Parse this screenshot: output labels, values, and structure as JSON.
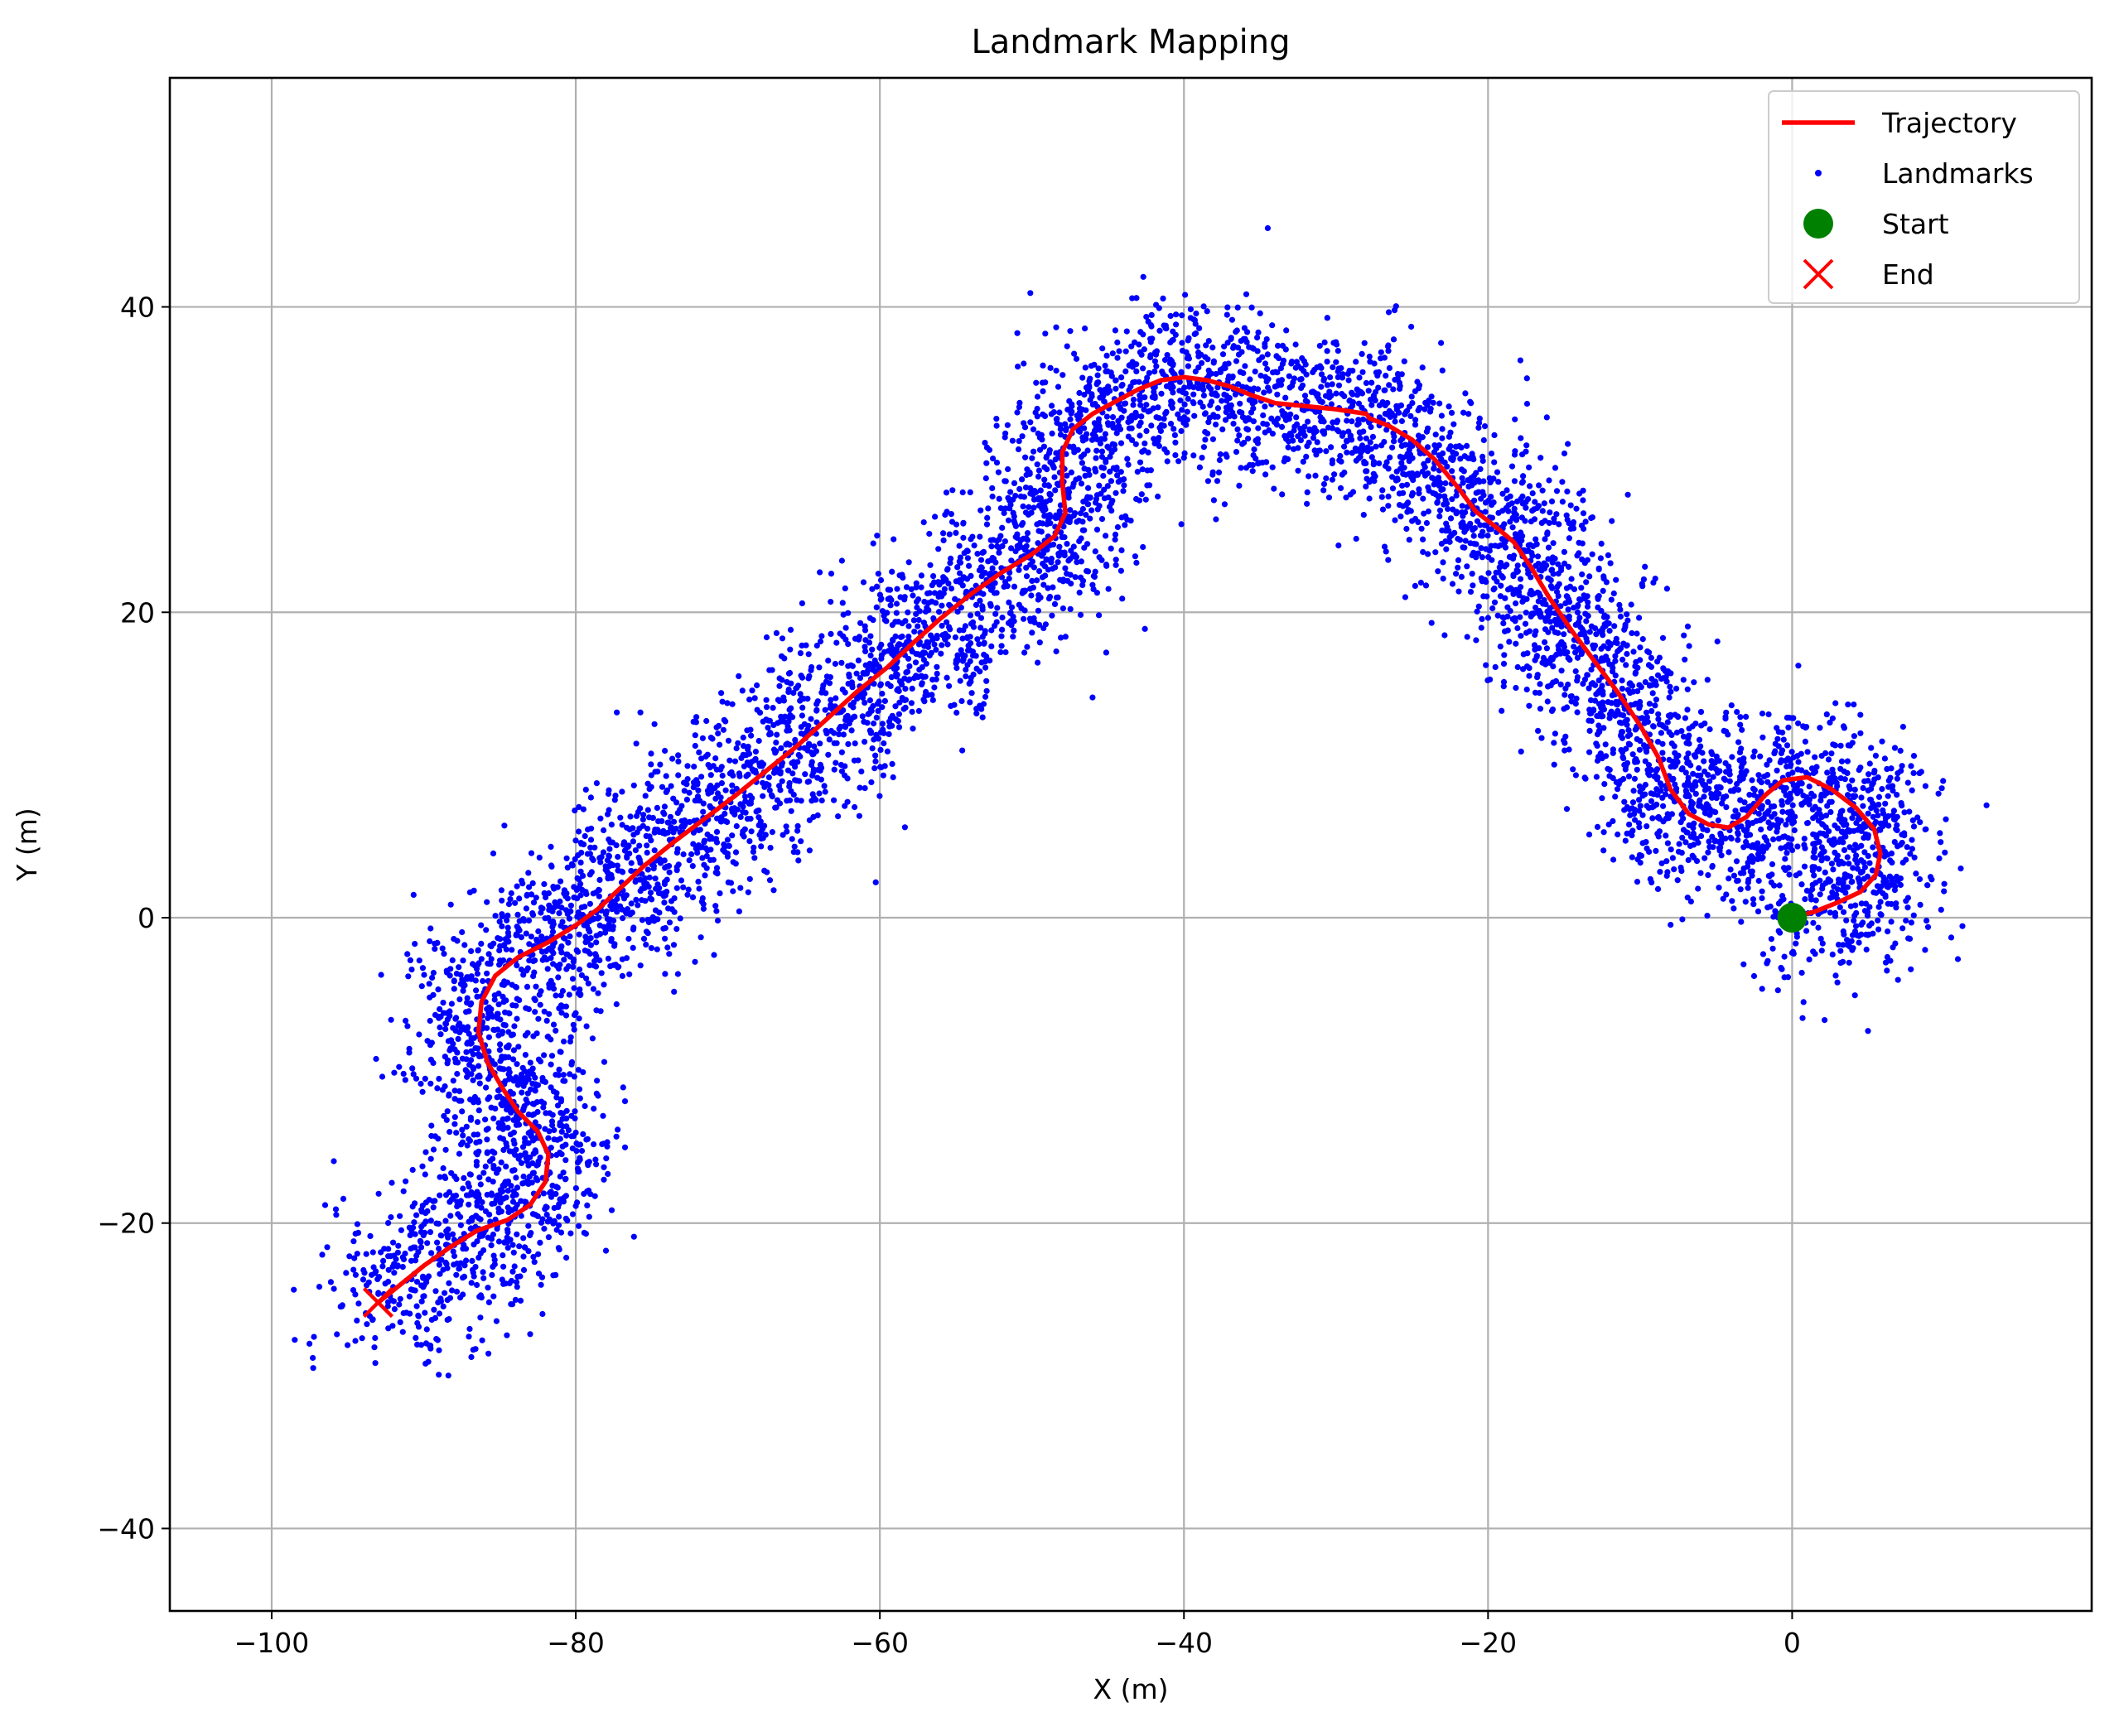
{
  "chart_data": {
    "type": "scatter",
    "title": "Landmark Mapping",
    "xlabel": "X (m)",
    "ylabel": "Y (m)",
    "xlim": [
      -106.7,
      19.7
    ],
    "ylim": [
      -45.4,
      55.0
    ],
    "xticks": [
      -100,
      -80,
      -60,
      -40,
      -20,
      0
    ],
    "yticks": [
      -40,
      -20,
      0,
      20,
      40
    ],
    "xtick_labels": [
      "−100",
      "−80",
      "−60",
      "−40",
      "−20",
      "0"
    ],
    "ytick_labels": [
      "−40",
      "−20",
      "0",
      "20",
      "40"
    ],
    "grid": true,
    "legend_position": "top-right",
    "legend": [
      {
        "label": "Trajectory",
        "marker": "line"
      },
      {
        "label": "Landmarks",
        "marker": "dot"
      },
      {
        "label": "Start",
        "marker": "circle"
      },
      {
        "label": "End",
        "marker": "x"
      }
    ],
    "colors": {
      "trajectory": "#ff0000",
      "landmarks": "#0000ff",
      "start": "#008000",
      "end": "#ff0000",
      "grid": "#b0b0b0"
    },
    "series": [
      {
        "name": "Trajectory",
        "kind": "line",
        "points": [
          [
            0.0,
            0.0
          ],
          [
            1.5,
            0.4
          ],
          [
            3.0,
            1.0
          ],
          [
            4.5,
            1.7
          ],
          [
            5.5,
            2.8
          ],
          [
            5.8,
            4.2
          ],
          [
            5.4,
            5.8
          ],
          [
            4.2,
            7.2
          ],
          [
            2.6,
            8.4
          ],
          [
            1.0,
            9.2
          ],
          [
            -0.6,
            9.0
          ],
          [
            -1.8,
            8.0
          ],
          [
            -3.0,
            6.6
          ],
          [
            -4.2,
            5.9
          ],
          [
            -5.5,
            6.1
          ],
          [
            -6.8,
            6.8
          ],
          [
            -8.0,
            8.4
          ],
          [
            -8.8,
            10.5
          ],
          [
            -10.0,
            12.6
          ],
          [
            -11.5,
            14.8
          ],
          [
            -13.0,
            16.8
          ],
          [
            -14.5,
            18.8
          ],
          [
            -16.0,
            21.0
          ],
          [
            -17.2,
            23.0
          ],
          [
            -18.3,
            24.6
          ],
          [
            -19.5,
            25.6
          ],
          [
            -20.8,
            26.6
          ],
          [
            -22.0,
            28.2
          ],
          [
            -23.5,
            30.0
          ],
          [
            -25.0,
            31.3
          ],
          [
            -26.5,
            32.2
          ],
          [
            -27.8,
            32.7
          ],
          [
            -28.0,
            33.0
          ],
          [
            -30.0,
            33.3
          ],
          [
            -32.0,
            33.5
          ],
          [
            -34.0,
            33.7
          ],
          [
            -35.5,
            34.2
          ],
          [
            -37.0,
            34.8
          ],
          [
            -38.5,
            35.2
          ],
          [
            -40.0,
            35.4
          ],
          [
            -41.5,
            35.2
          ],
          [
            -43.0,
            34.6
          ],
          [
            -44.5,
            33.8
          ],
          [
            -46.0,
            33.0
          ],
          [
            -47.3,
            32.0
          ],
          [
            -48.0,
            30.5
          ],
          [
            -48.0,
            28.5
          ],
          [
            -47.8,
            26.5
          ],
          [
            -48.5,
            25.0
          ],
          [
            -50.0,
            23.8
          ],
          [
            -52.0,
            22.6
          ],
          [
            -54.0,
            21.2
          ],
          [
            -56.0,
            19.6
          ],
          [
            -57.8,
            18.0
          ],
          [
            -59.5,
            16.4
          ],
          [
            -61.5,
            14.8
          ],
          [
            -63.5,
            13.0
          ],
          [
            -65.5,
            11.2
          ],
          [
            -67.5,
            9.6
          ],
          [
            -69.5,
            8.0
          ],
          [
            -71.5,
            6.5
          ],
          [
            -73.5,
            5.0
          ],
          [
            -75.5,
            3.4
          ],
          [
            -77.0,
            2.0
          ],
          [
            -78.5,
            0.6
          ],
          [
            -80.0,
            -0.5
          ],
          [
            -81.8,
            -1.6
          ],
          [
            -83.8,
            -2.6
          ],
          [
            -85.3,
            -3.8
          ],
          [
            -86.2,
            -5.5
          ],
          [
            -86.4,
            -7.5
          ],
          [
            -85.8,
            -9.5
          ],
          [
            -84.8,
            -11.2
          ],
          [
            -83.8,
            -12.7
          ],
          [
            -82.5,
            -14.0
          ],
          [
            -81.8,
            -15.5
          ],
          [
            -82.0,
            -17.3
          ],
          [
            -83.0,
            -18.8
          ],
          [
            -84.5,
            -19.8
          ],
          [
            -86.5,
            -20.5
          ],
          [
            -88.3,
            -21.6
          ],
          [
            -90.0,
            -22.8
          ],
          [
            -91.5,
            -24.0
          ],
          [
            -93.0,
            -25.2
          ]
        ]
      },
      {
        "name": "Landmarks",
        "kind": "scatter",
        "count": 6800,
        "spread_m": 2.6
      },
      {
        "name": "Start",
        "kind": "marker",
        "x": 0.0,
        "y": 0.0
      },
      {
        "name": "End",
        "kind": "marker",
        "x": -93.0,
        "y": -25.2
      }
    ]
  }
}
